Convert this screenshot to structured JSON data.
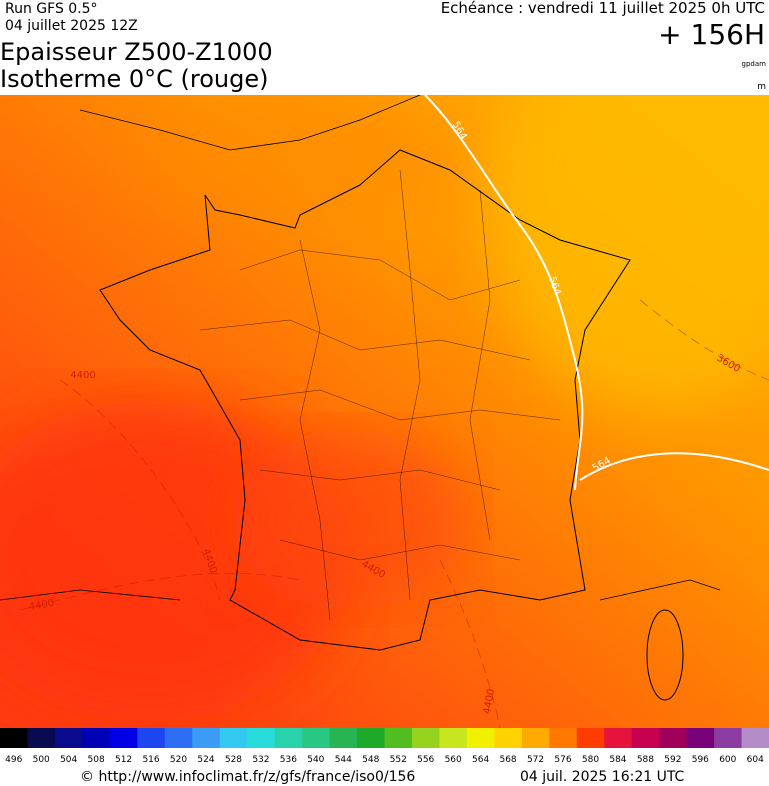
{
  "header": {
    "run": "Run GFS 0.5°",
    "run_date": "04 juillet 2025 12Z",
    "echeance": "Echéance : vendredi 11 juillet 2025 0h UTC",
    "lead": "+ 156H",
    "title_1": "Epaisseur Z500-Z1000",
    "title_2": "Isotherme 0°C (rouge)",
    "unit_1": "gpdam",
    "unit_2": "m"
  },
  "contour_labels": [
    "564",
    "564",
    "564",
    "4400",
    "4400",
    "4400",
    "4400",
    "4400",
    "3600"
  ],
  "legend": {
    "labels": [
      496,
      500,
      504,
      508,
      512,
      516,
      520,
      524,
      528,
      532,
      536,
      540,
      544,
      548,
      552,
      556,
      560,
      564,
      568,
      572,
      576,
      580,
      584,
      588,
      592,
      596,
      600,
      604
    ],
    "colors": [
      "#000000",
      "#0a0a50",
      "#0a0a8c",
      "#0000b4",
      "#0000e6",
      "#1e46f0",
      "#2d6ef5",
      "#3c9bf5",
      "#32c8f0",
      "#28dcdc",
      "#28d2aa",
      "#28c882",
      "#28b450",
      "#1eaa28",
      "#50be1e",
      "#96d21e",
      "#c8e61e",
      "#f0f000",
      "#ffd200",
      "#ffaa00",
      "#ff7800",
      "#ff3c00",
      "#e6143c",
      "#c80050",
      "#a0005a",
      "#780078",
      "#8c3ca0",
      "#b48cc8"
    ]
  },
  "footer": {
    "url": "© http://www.infoclimat.fr/z/gfs/france/iso0/156",
    "generated": "04 juil. 2025 16:21 UTC"
  }
}
